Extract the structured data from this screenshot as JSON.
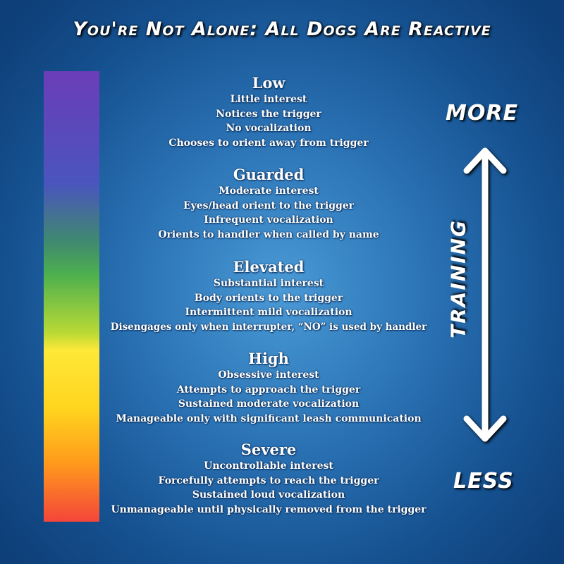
{
  "title": "You're Not Alone: All Dogs Are Reactive",
  "scale_colors": [
    "#6b3db8",
    "#4a55bd",
    "#4caf4f",
    "#ffe838",
    "#ff9a1c",
    "#f4453a"
  ],
  "levels": [
    {
      "name": "Low",
      "lines": [
        "Little interest",
        "Notices the trigger",
        "No vocalization",
        "Chooses to orient away from trigger"
      ]
    },
    {
      "name": "Guarded",
      "lines": [
        "Moderate interest",
        "Eyes/head orient to the trigger",
        "Infrequent vocalization",
        "Orients to handler when called by name"
      ]
    },
    {
      "name": "Elevated",
      "lines": [
        "Substantial interest",
        "Body orients to the trigger",
        "Intermittent mild vocalization",
        "Disengages only when interrupter, “NO” is used by handler"
      ]
    },
    {
      "name": "High",
      "lines": [
        "Obsessive interest",
        "Attempts to approach the trigger",
        "Sustained moderate vocalization",
        "Manageable only with significant leash communication"
      ]
    },
    {
      "name": "Severe",
      "lines": [
        "Uncontrollable interest",
        "Forcefully attempts to reach the trigger",
        "Sustained loud vocalization",
        "Unmanageable until physically removed from the trigger"
      ]
    }
  ],
  "arrow": {
    "top_label": "MORE",
    "bottom_label": "LESS",
    "axis_label": "TRAINING",
    "icon": "double-headed-arrow-icon"
  }
}
